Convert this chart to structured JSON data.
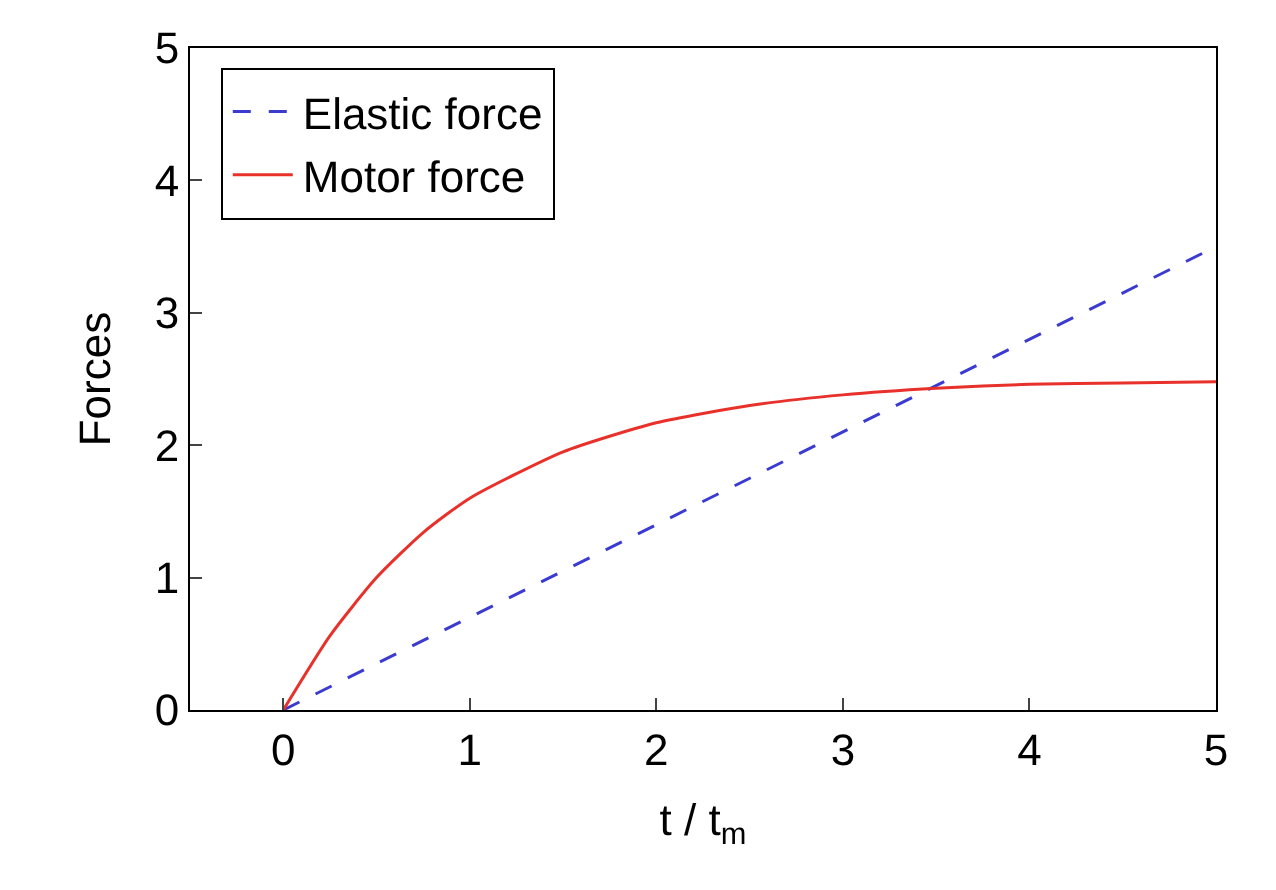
{
  "chart_data": {
    "type": "line",
    "xlabel": "t / t$_{m}$",
    "ylabel": "Forces",
    "xlim": [
      -0.5,
      5
    ],
    "ylim": [
      0,
      5
    ],
    "xticks": [
      0,
      1,
      2,
      3,
      4,
      5
    ],
    "yticks": [
      0,
      1,
      2,
      3,
      4,
      5
    ],
    "legend": "top left",
    "marker": "none",
    "series": [
      {
        "name": "Elastic force",
        "color": "#3b3bd0",
        "line_style": "dashed",
        "x": [
          0,
          5
        ],
        "values": [
          0,
          3.5
        ]
      },
      {
        "name": "Motor force",
        "color": "#e8312a",
        "line_style": "solid",
        "x": [
          0,
          0.25,
          0.5,
          0.75,
          1,
          1.5,
          2,
          2.5,
          3,
          3.5,
          4,
          4.5,
          5
        ],
        "values": [
          0,
          0.56,
          1.0,
          1.34,
          1.6,
          1.95,
          2.17,
          2.3,
          2.38,
          2.43,
          2.46,
          2.47,
          2.48
        ]
      }
    ]
  }
}
